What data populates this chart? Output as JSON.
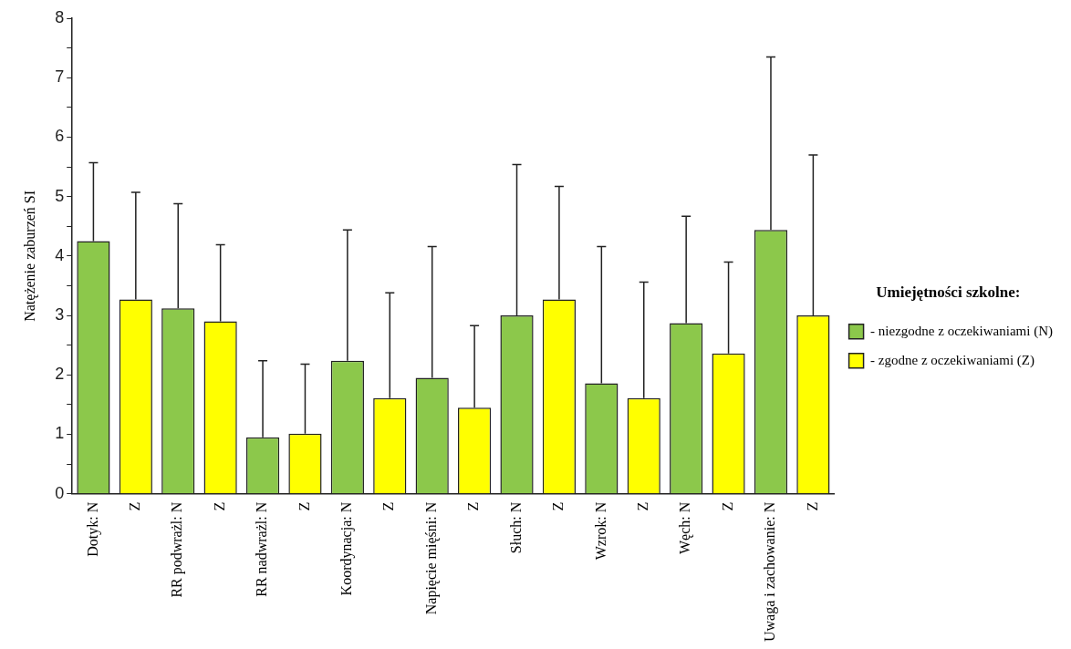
{
  "chart_data": {
    "type": "bar",
    "ylabel": "Natężenie zaburzeń SI",
    "legend_title": "Umiejętności szkolne:",
    "legend": "right",
    "grid": false,
    "categories": [
      "Dotyk: N",
      "Z",
      "RR podwrażl: N",
      "Z",
      "RR nadwrażl: N",
      "Z",
      "Koordynacja: N",
      "Z",
      "Napięcie mięśni: N",
      "Z",
      "Słuch: N",
      "Z",
      "Wzrok: N",
      "Z",
      "Węch: N",
      "Z",
      "Uwaga i zachowanie: N",
      "Z"
    ],
    "ylim": [
      0,
      8
    ],
    "yticks": [
      0,
      {
        "value": 0.5,
        "label": null
      },
      1,
      {
        "value": 1.5,
        "label": null
      },
      2,
      {
        "value": 2.5,
        "label": null
      },
      3,
      {
        "value": 3.5,
        "label": null
      },
      4,
      {
        "value": 4.5,
        "label": null
      },
      5,
      {
        "value": 5.5,
        "label": null
      },
      6,
      {
        "value": 6.5,
        "label": null
      },
      7,
      {
        "value": 7.5,
        "label": null
      },
      8
    ],
    "series": [
      {
        "name": "- niezgodne z oczekiwaniami (N)",
        "color": "#8cc84b",
        "values": [
          4.25,
          null,
          3.12,
          null,
          0.95,
          null,
          2.24,
          null,
          1.95,
          null,
          3.0,
          null,
          1.86,
          null,
          2.87,
          null,
          4.44,
          null
        ],
        "errors": [
          [
            4.25,
            5.57
          ],
          null,
          [
            3.12,
            4.88
          ],
          null,
          [
            0.95,
            2.24
          ],
          null,
          [
            2.24,
            4.44
          ],
          null,
          [
            1.95,
            4.16
          ],
          null,
          [
            3.0,
            5.54
          ],
          null,
          [
            1.86,
            4.16
          ],
          null,
          [
            2.87,
            4.67
          ],
          null,
          [
            4.44,
            7.35
          ],
          null
        ]
      },
      {
        "name": "- zgodne z oczekiwaniami (Z)",
        "color": "#ffff00",
        "values": [
          null,
          3.27,
          null,
          2.9,
          null,
          1.01,
          null,
          1.61,
          null,
          1.45,
          null,
          3.27,
          null,
          1.61,
          null,
          2.36,
          null,
          3.0
        ],
        "errors": [
          null,
          [
            3.27,
            5.07
          ],
          null,
          [
            2.9,
            4.19
          ],
          null,
          [
            1.01,
            2.18
          ],
          null,
          [
            1.61,
            3.38
          ],
          null,
          [
            1.45,
            2.83
          ],
          null,
          [
            3.27,
            5.17
          ],
          null,
          [
            1.61,
            3.56
          ],
          null,
          [
            2.36,
            3.9
          ],
          null,
          [
            3.0,
            5.7
          ]
        ]
      }
    ]
  }
}
